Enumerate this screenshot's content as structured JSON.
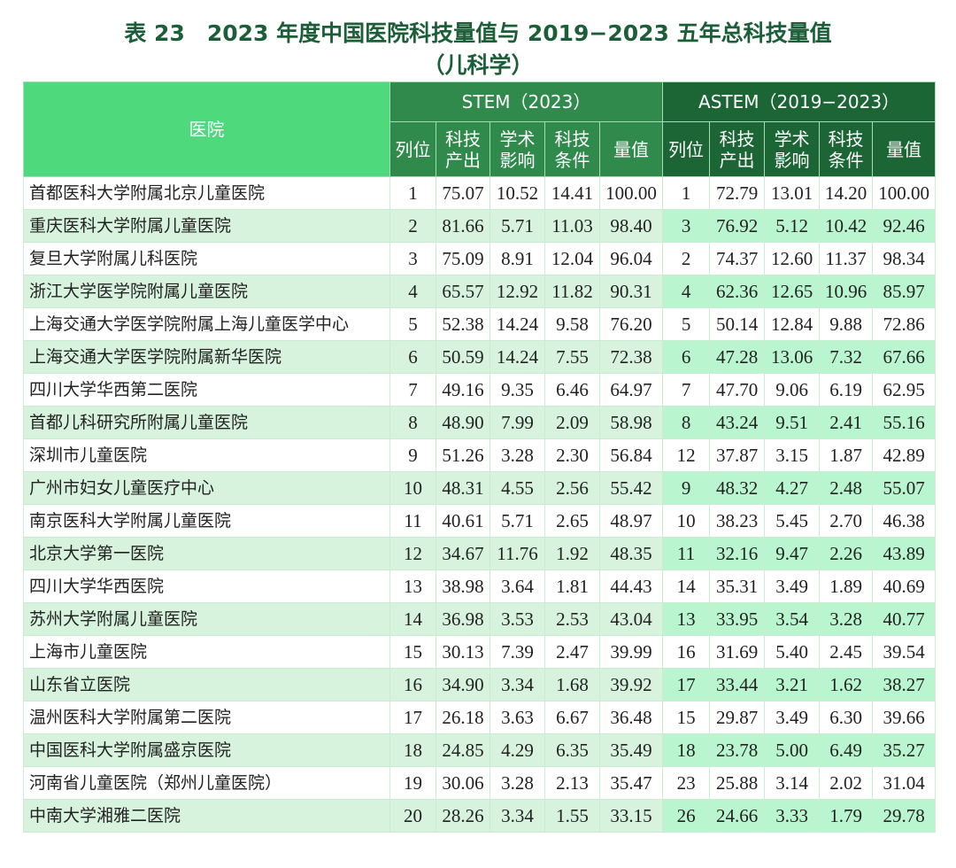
{
  "title": {
    "line1": "表 23　2023 年度中国医院科技量值与 2019−2023 五年总科技量值",
    "line2": "（儿科学）"
  },
  "header": {
    "hospital": "医院",
    "stem": "STEM（2023）",
    "astem": "ASTEM（2019−2023）",
    "sub": [
      "列位",
      "科技\n产出",
      "学术\n影响",
      "科技\n条件",
      "量值"
    ]
  },
  "colors": {
    "header_name": "#4ed97c",
    "header_stem": "#2f8a4c",
    "header_astem": "#1c6636",
    "title": "#1b5e38",
    "stripe": "#d7f3dd",
    "stripe_astem": "#b9f5cf"
  },
  "rows": [
    [
      "首都医科大学附属北京儿童医院",
      "1",
      "75.07",
      "10.52",
      "14.41",
      "100.00",
      "1",
      "72.79",
      "13.01",
      "14.20",
      "100.00"
    ],
    [
      "重庆医科大学附属儿童医院",
      "2",
      "81.66",
      "5.71",
      "11.03",
      "98.40",
      "3",
      "76.92",
      "5.12",
      "10.42",
      "92.46"
    ],
    [
      "复旦大学附属儿科医院",
      "3",
      "75.09",
      "8.91",
      "12.04",
      "96.04",
      "2",
      "74.37",
      "12.60",
      "11.37",
      "98.34"
    ],
    [
      "浙江大学医学院附属儿童医院",
      "4",
      "65.57",
      "12.92",
      "11.82",
      "90.31",
      "4",
      "62.36",
      "12.65",
      "10.96",
      "85.97"
    ],
    [
      "上海交通大学医学院附属上海儿童医学中心",
      "5",
      "52.38",
      "14.24",
      "9.58",
      "76.20",
      "5",
      "50.14",
      "12.84",
      "9.88",
      "72.86"
    ],
    [
      "上海交通大学医学院附属新华医院",
      "6",
      "50.59",
      "14.24",
      "7.55",
      "72.38",
      "6",
      "47.28",
      "13.06",
      "7.32",
      "67.66"
    ],
    [
      "四川大学华西第二医院",
      "7",
      "49.16",
      "9.35",
      "6.46",
      "64.97",
      "7",
      "47.70",
      "9.06",
      "6.19",
      "62.95"
    ],
    [
      "首都儿科研究所附属儿童医院",
      "8",
      "48.90",
      "7.99",
      "2.09",
      "58.98",
      "8",
      "43.24",
      "9.51",
      "2.41",
      "55.16"
    ],
    [
      "深圳市儿童医院",
      "9",
      "51.26",
      "3.28",
      "2.30",
      "56.84",
      "12",
      "37.87",
      "3.15",
      "1.87",
      "42.89"
    ],
    [
      "广州市妇女儿童医疗中心",
      "10",
      "48.31",
      "4.55",
      "2.56",
      "55.42",
      "9",
      "48.32",
      "4.27",
      "2.48",
      "55.07"
    ],
    [
      "南京医科大学附属儿童医院",
      "11",
      "40.61",
      "5.71",
      "2.65",
      "48.97",
      "10",
      "38.23",
      "5.45",
      "2.70",
      "46.38"
    ],
    [
      "北京大学第一医院",
      "12",
      "34.67",
      "11.76",
      "1.92",
      "48.35",
      "11",
      "32.16",
      "9.47",
      "2.26",
      "43.89"
    ],
    [
      "四川大学华西医院",
      "13",
      "38.98",
      "3.64",
      "1.81",
      "44.43",
      "14",
      "35.31",
      "3.49",
      "1.89",
      "40.69"
    ],
    [
      "苏州大学附属儿童医院",
      "14",
      "36.98",
      "3.53",
      "2.53",
      "43.04",
      "13",
      "33.95",
      "3.54",
      "3.28",
      "40.77"
    ],
    [
      "上海市儿童医院",
      "15",
      "30.13",
      "7.39",
      "2.47",
      "39.99",
      "16",
      "31.69",
      "5.40",
      "2.45",
      "39.54"
    ],
    [
      "山东省立医院",
      "16",
      "34.90",
      "3.34",
      "1.68",
      "39.92",
      "17",
      "33.44",
      "3.21",
      "1.62",
      "38.27"
    ],
    [
      "温州医科大学附属第二医院",
      "17",
      "26.18",
      "3.63",
      "6.67",
      "36.48",
      "15",
      "29.87",
      "3.49",
      "6.30",
      "39.66"
    ],
    [
      "中国医科大学附属盛京医院",
      "18",
      "24.85",
      "4.29",
      "6.35",
      "35.49",
      "18",
      "23.78",
      "5.00",
      "6.49",
      "35.27"
    ],
    [
      "河南省儿童医院（郑州儿童医院）",
      "19",
      "30.06",
      "3.28",
      "2.13",
      "35.47",
      "23",
      "25.88",
      "3.14",
      "2.02",
      "31.04"
    ],
    [
      "中南大学湘雅二医院",
      "20",
      "28.26",
      "3.34",
      "1.55",
      "33.15",
      "26",
      "24.66",
      "3.33",
      "1.79",
      "29.78"
    ]
  ]
}
